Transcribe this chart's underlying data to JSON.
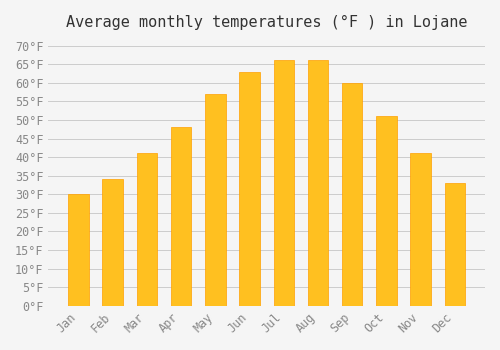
{
  "title": "Average monthly temperatures (°F ) in Lojane",
  "months": [
    "Jan",
    "Feb",
    "Mar",
    "Apr",
    "May",
    "Jun",
    "Jul",
    "Aug",
    "Sep",
    "Oct",
    "Nov",
    "Dec"
  ],
  "values": [
    30,
    34,
    41,
    48,
    57,
    63,
    66,
    66,
    60,
    51,
    41,
    33
  ],
  "bar_color": "#FFC020",
  "bar_edge_color": "#FFA000",
  "background_color": "#F5F5F5",
  "grid_color": "#CCCCCC",
  "ytick_labels": [
    "0°F",
    "5°F",
    "10°F",
    "15°F",
    "20°F",
    "25°F",
    "30°F",
    "35°F",
    "40°F",
    "45°F",
    "50°F",
    "55°F",
    "60°F",
    "65°F",
    "70°F"
  ],
  "ytick_values": [
    0,
    5,
    10,
    15,
    20,
    25,
    30,
    35,
    40,
    45,
    50,
    55,
    60,
    65,
    70
  ],
  "ylim": [
    0,
    72
  ],
  "title_fontsize": 11,
  "tick_fontsize": 8.5,
  "tick_font": "monospace"
}
